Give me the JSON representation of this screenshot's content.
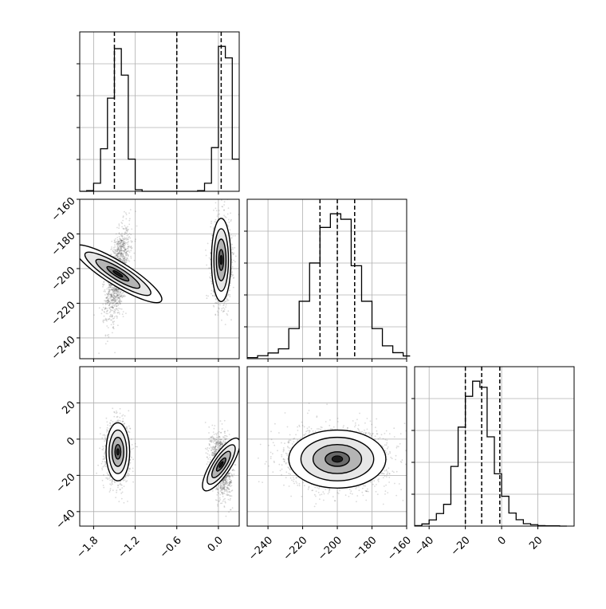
{
  "chart_data": {
    "type": "corner",
    "figure_title": "",
    "grid": true,
    "dark_color": "#000000",
    "density_color": "#444444",
    "dashed_color": "#000000",
    "variables": [
      "",
      "",
      ""
    ],
    "ranges": [
      [
        -2.0,
        0.3
      ],
      [
        -252,
        -160
      ],
      [
        -48,
        40
      ]
    ],
    "ticks": [
      {
        "values": [
          -1.8,
          -1.2,
          -0.6,
          0.0
        ],
        "labels": [
          "−1.8",
          "−1.2",
          "−0.6",
          "0.0"
        ]
      },
      {
        "values": [
          -240,
          -220,
          -200,
          -180,
          -160
        ],
        "labels": [
          "−240",
          "−220",
          "−200",
          "−180",
          "−160"
        ]
      },
      {
        "values": [
          -40,
          -20,
          0,
          20
        ],
        "labels": [
          "−40",
          "−20",
          "0",
          "20"
        ]
      }
    ],
    "quantiles": [
      [
        -1.5,
        -0.6,
        0.04
      ],
      [
        -210,
        -200,
        -190
      ],
      [
        -20,
        -11,
        -1
      ]
    ],
    "histograms": [
      {
        "bin_edges": [
          -2.0,
          -1.9,
          -1.8,
          -1.7,
          -1.6,
          -1.5,
          -1.4,
          -1.3,
          -1.2,
          -1.1,
          -1.0,
          -0.9,
          -0.8,
          -0.7,
          -0.6,
          -0.5,
          -0.4,
          -0.3,
          -0.2,
          -0.1,
          0.0,
          0.1,
          0.2,
          0.3
        ],
        "counts": [
          0,
          0.3,
          3.5,
          18.5,
          40.5,
          62,
          50.5,
          14,
          0.7,
          0,
          0,
          0,
          0,
          0,
          0,
          0,
          0,
          0.3,
          3.5,
          19,
          63,
          58,
          14
        ]
      },
      {
        "bin_edges": [
          -252,
          -246,
          -240,
          -234,
          -228,
          -222,
          -216,
          -210,
          -204,
          -198,
          -192,
          -186,
          -180,
          -174,
          -168,
          -162,
          -158
        ],
        "counts": [
          0.4,
          1.1,
          2.1,
          3.6,
          11,
          21,
          35,
          48,
          53,
          51,
          34,
          21,
          11,
          4.7,
          2.2,
          1
        ]
      },
      {
        "bin_edges": [
          -48,
          -44,
          -40,
          -36,
          -32,
          -28,
          -24,
          -20,
          -16,
          -12,
          -8,
          -4,
          0,
          4,
          8,
          12,
          16,
          20,
          24,
          28,
          32,
          36
        ],
        "counts": [
          0.2,
          0.9,
          2.6,
          5.3,
          9.2,
          25.2,
          41.8,
          54.8,
          61.2,
          58.6,
          37.7,
          22.1,
          12.6,
          5.5,
          2.7,
          1.0,
          0.6,
          0.2,
          0.1,
          0.1,
          0
        ]
      }
    ],
    "pairs": [
      {
        "row": 1,
        "col": 0,
        "clusters": [
          {
            "cx": -1.45,
            "cy": -203,
            "sx": 0.085,
            "sy": 13,
            "rho": 0.55,
            "n": 1400
          },
          {
            "cx": 0.04,
            "cy": -195,
            "sx": 0.07,
            "sy": 12,
            "rho": 0.0,
            "n": 1400
          }
        ]
      },
      {
        "row": 2,
        "col": 0,
        "clusters": [
          {
            "cx": -1.45,
            "cy": -7,
            "sx": 0.085,
            "sy": 8,
            "rho": 0.0,
            "n": 1400
          },
          {
            "cx": 0.04,
            "cy": -14,
            "sx": 0.07,
            "sy": 8,
            "rho": -0.25,
            "n": 1400
          }
        ]
      },
      {
        "row": 2,
        "col": 1,
        "clusters": [
          {
            "cx": -200,
            "cy": -11,
            "sx": 14,
            "sy": 8,
            "rho": 0.0,
            "n": 2800
          }
        ]
      }
    ]
  }
}
